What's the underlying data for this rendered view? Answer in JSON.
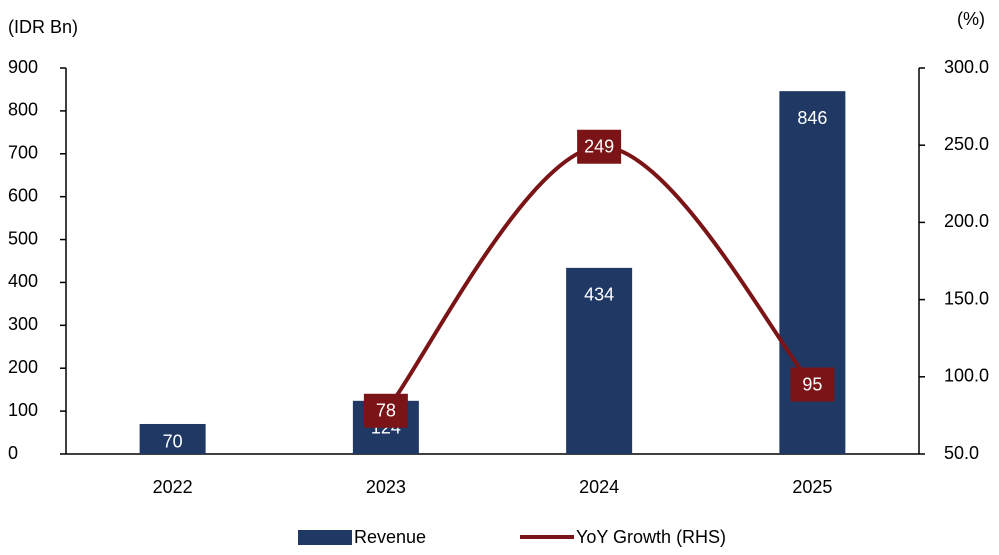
{
  "chart_data": {
    "type": "bar_line",
    "y_label": "(IDR Bn)",
    "y2_label": "(%)",
    "categories": [
      "2022",
      "2023",
      "2024",
      "2025"
    ],
    "series": [
      {
        "name": "Revenue",
        "type": "bar",
        "color": "#1f3864",
        "values": [
          70,
          124,
          434,
          846
        ]
      },
      {
        "name": "YoY Growth (RHS)",
        "type": "line",
        "axis": "y2",
        "color": "#7b1416",
        "values": [
          null,
          78,
          249,
          95
        ]
      }
    ],
    "ylim": [
      0,
      900
    ],
    "yticks": [
      0,
      100,
      200,
      300,
      400,
      500,
      600,
      700,
      800,
      900
    ],
    "y2lim": [
      50,
      300
    ],
    "y2ticks": [
      {
        "value": 50,
        "label": "50.0"
      },
      {
        "value": 100,
        "label": "100.0"
      },
      {
        "value": 150,
        "label": "150.0"
      },
      {
        "value": 200,
        "label": "200.0"
      },
      {
        "value": 250,
        "label": "250.0"
      },
      {
        "value": 300,
        "label": "300.0"
      }
    ],
    "legend": "bottom"
  }
}
